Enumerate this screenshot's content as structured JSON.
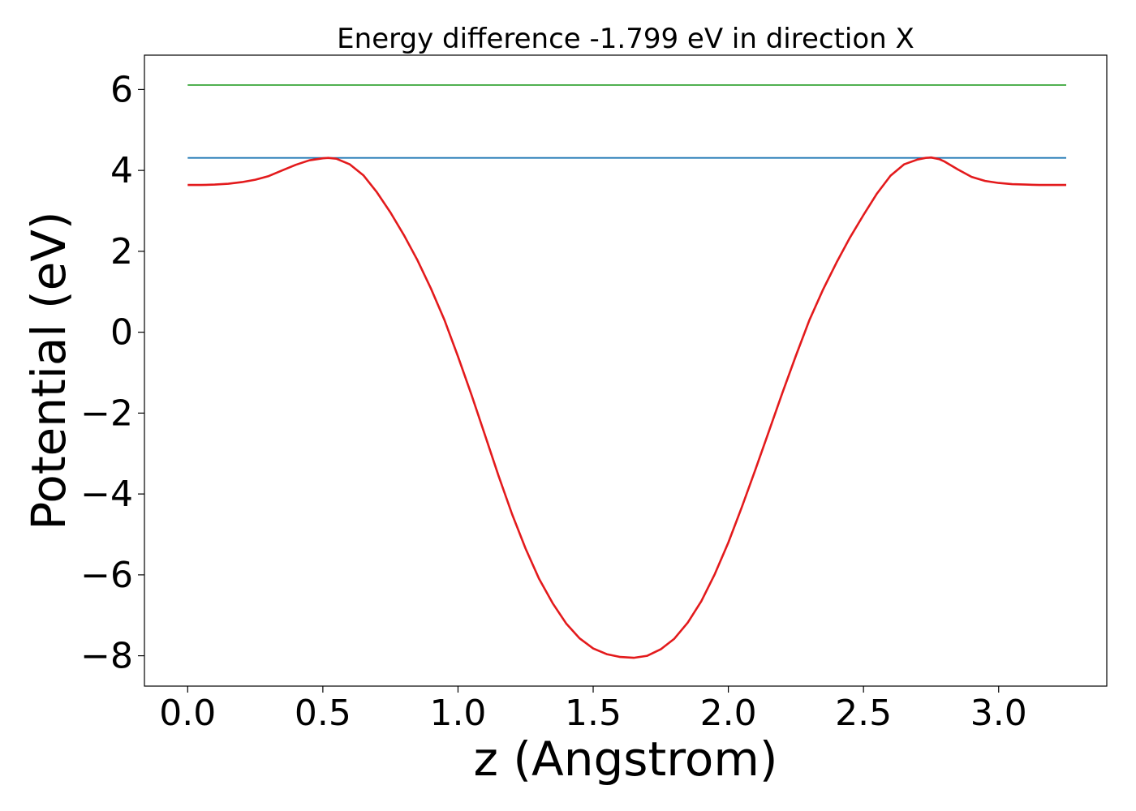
{
  "chart_data": {
    "type": "line",
    "title": "Energy difference -1.799 eV in direction X",
    "xlabel": "z (Angstrom)",
    "ylabel": "Potential (eV)",
    "xlim": [
      -0.16,
      3.4
    ],
    "ylim": [
      -8.75,
      6.85
    ],
    "xticks": [
      0.0,
      0.5,
      1.0,
      1.5,
      2.0,
      2.5,
      3.0
    ],
    "xtick_labels": [
      "0.0",
      "0.5",
      "1.0",
      "1.5",
      "2.0",
      "2.5",
      "3.0"
    ],
    "yticks": [
      6,
      4,
      2,
      0,
      -2,
      -4,
      -6,
      -8
    ],
    "ytick_labels": [
      "6",
      "4",
      "2",
      "0",
      "−2",
      "−4",
      "−6",
      "−8"
    ],
    "grid": false,
    "series": [
      {
        "color": "#2ca02c",
        "x": [
          0.0,
          3.25
        ],
        "y": [
          6.11,
          6.11
        ]
      },
      {
        "color": "#1f77b4",
        "x": [
          0.0,
          3.25
        ],
        "y": [
          4.31,
          4.31
        ]
      },
      {
        "color": "#e31a1c",
        "x": [
          0.0,
          0.05,
          0.1,
          0.15,
          0.2,
          0.25,
          0.3,
          0.35,
          0.4,
          0.45,
          0.5,
          0.52,
          0.55,
          0.6,
          0.65,
          0.7,
          0.75,
          0.8,
          0.85,
          0.9,
          0.95,
          1.0,
          1.05,
          1.1,
          1.15,
          1.2,
          1.25,
          1.3,
          1.35,
          1.4,
          1.45,
          1.5,
          1.55,
          1.6,
          1.65,
          1.7,
          1.75,
          1.8,
          1.85,
          1.9,
          1.95,
          2.0,
          2.05,
          2.1,
          2.15,
          2.2,
          2.25,
          2.3,
          2.35,
          2.4,
          2.45,
          2.5,
          2.55,
          2.6,
          2.65,
          2.7,
          2.73,
          2.75,
          2.78,
          2.8,
          2.85,
          2.9,
          2.95,
          3.0,
          3.05,
          3.1,
          3.15,
          3.2,
          3.25
        ],
        "y": [
          3.64,
          3.64,
          3.65,
          3.67,
          3.71,
          3.77,
          3.86,
          4.0,
          4.14,
          4.25,
          4.3,
          4.31,
          4.29,
          4.15,
          3.88,
          3.46,
          2.96,
          2.4,
          1.78,
          1.08,
          0.3,
          -0.6,
          -1.55,
          -2.55,
          -3.55,
          -4.5,
          -5.35,
          -6.1,
          -6.7,
          -7.2,
          -7.57,
          -7.82,
          -7.96,
          -8.03,
          -8.05,
          -8.0,
          -7.84,
          -7.58,
          -7.18,
          -6.65,
          -5.98,
          -5.2,
          -4.32,
          -3.4,
          -2.45,
          -1.5,
          -0.58,
          0.3,
          1.05,
          1.72,
          2.34,
          2.9,
          3.43,
          3.87,
          4.15,
          4.27,
          4.31,
          4.32,
          4.28,
          4.22,
          4.02,
          3.84,
          3.74,
          3.69,
          3.66,
          3.65,
          3.64,
          3.64,
          3.64
        ]
      }
    ]
  }
}
